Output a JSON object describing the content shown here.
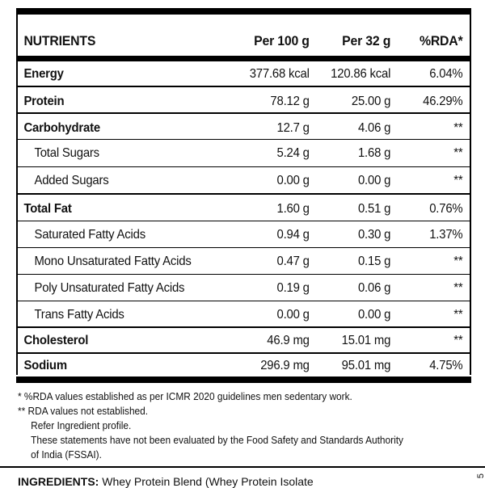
{
  "header": {
    "col0": "NUTRIENTS",
    "col1": "Per 100 g",
    "col2": "Per 32 g",
    "col3": "%RDA*"
  },
  "rows": [
    {
      "name": "Energy",
      "per100": "377.68 kcal",
      "per32": "120.86 kcal",
      "rda": "6.04%"
    },
    {
      "name": "Protein",
      "per100": "78.12 g",
      "per32": "25.00 g",
      "rda": "46.29%"
    },
    {
      "name": "Carbohydrate",
      "per100": "12.7 g",
      "per32": "4.06 g",
      "rda": "**"
    },
    {
      "name": "Total Sugars",
      "per100": "5.24 g",
      "per32": "1.68 g",
      "rda": "**"
    },
    {
      "name": "Added Sugars",
      "per100": "0.00 g",
      "per32": "0.00 g",
      "rda": "**"
    },
    {
      "name": "Total Fat",
      "per100": "1.60 g",
      "per32": "0.51 g",
      "rda": "0.76%"
    },
    {
      "name": "Saturated Fatty Acids",
      "per100": "0.94 g",
      "per32": "0.30 g",
      "rda": "1.37%"
    },
    {
      "name": "Mono Unsaturated Fatty Acids",
      "per100": "0.47 g",
      "per32": "0.15 g",
      "rda": "**"
    },
    {
      "name": "Poly Unsaturated Fatty Acids",
      "per100": "0.19 g",
      "per32": "0.06 g",
      "rda": "**"
    },
    {
      "name": "Trans Fatty Acids",
      "per100": "0.00 g",
      "per32": "0.00 g",
      "rda": "**"
    },
    {
      "name": "Cholesterol",
      "per100": "46.9 mg",
      "per32": "15.01 mg",
      "rda": "**"
    },
    {
      "name": "Sodium",
      "per100": "296.9 mg",
      "per32": "95.01 mg",
      "rda": "4.75%"
    }
  ],
  "footnotes": {
    "line1": "* %RDA values established as per ICMR 2020 guidelines men sedentary work.",
    "line2": "** RDA values not established.",
    "line3": "Refer Ingredient profile.",
    "line4": "These statements have not been evaluated by the Food Safety and Standards Authority",
    "line5": "of India (FSSAI)."
  },
  "ingredients": {
    "label": "INGREDIENTS:",
    "text": "Whey Protein Blend (Whey Protein Isolate"
  },
  "side_mark": "5"
}
